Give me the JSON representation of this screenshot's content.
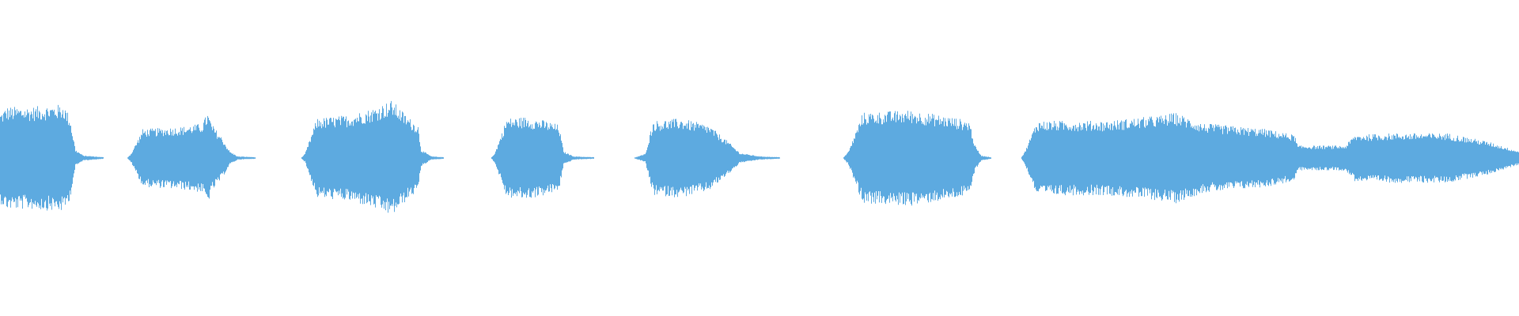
{
  "waveform": {
    "color": "#5DAAE0",
    "background": "#FFFFFF"
  }
}
